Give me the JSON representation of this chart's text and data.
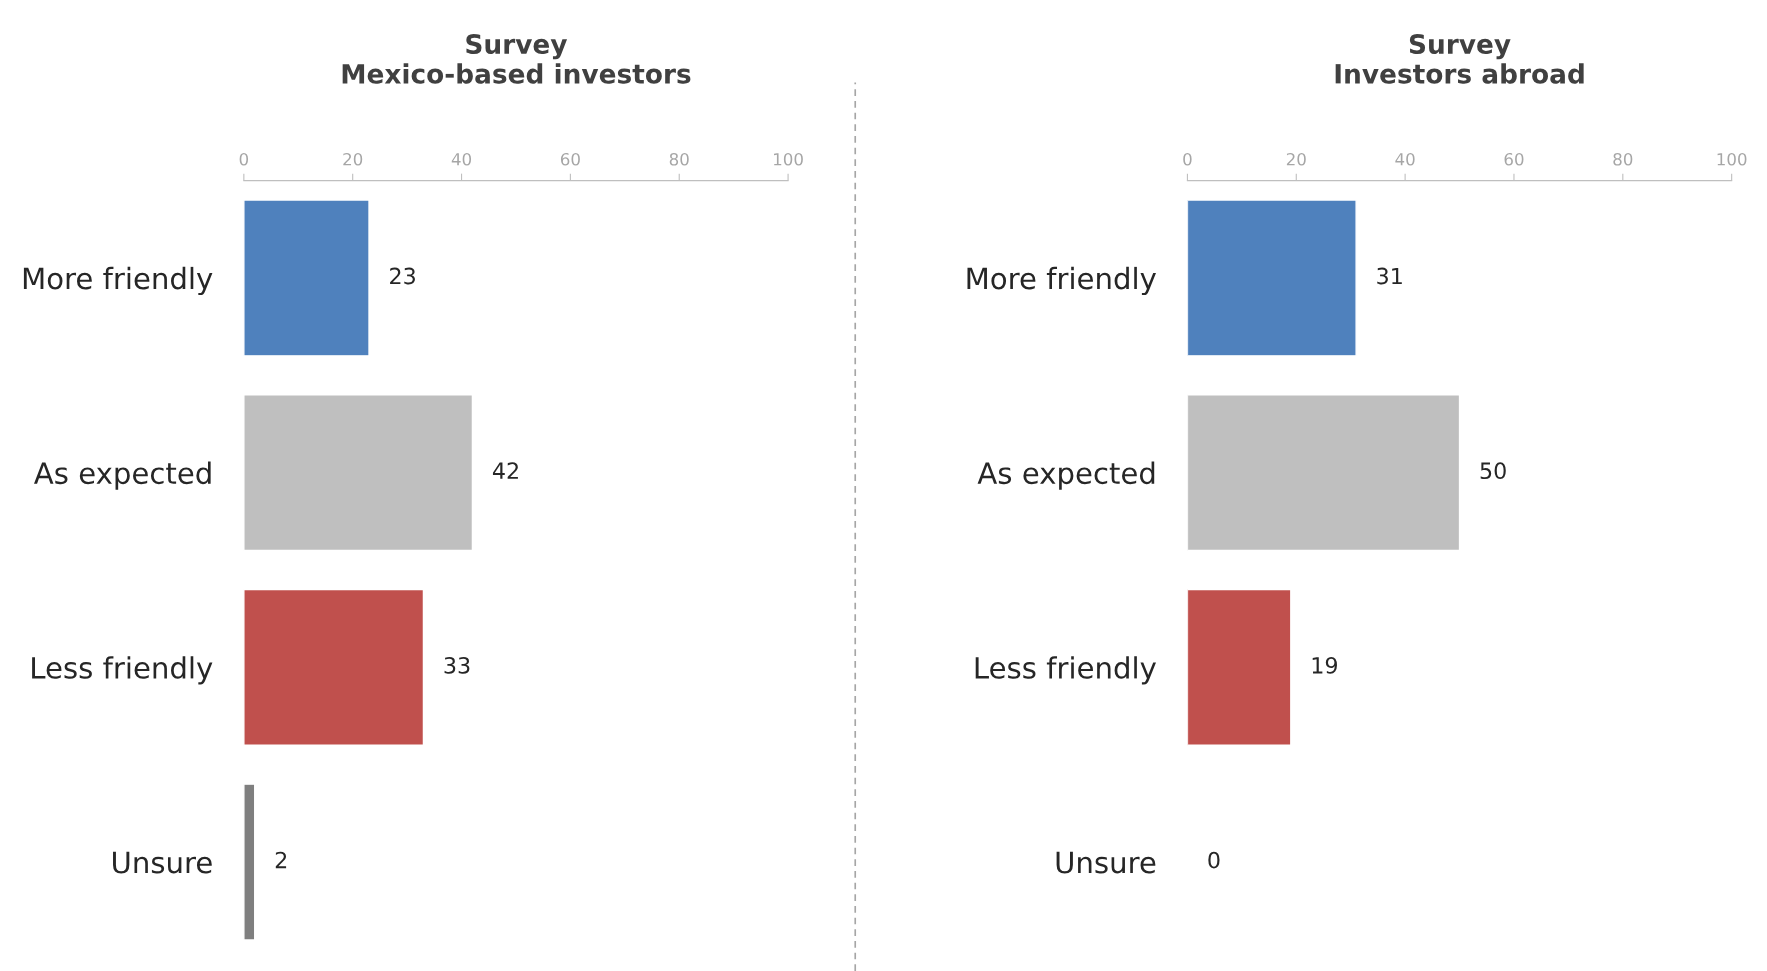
{
  "chart_data": [
    {
      "type": "bar",
      "orientation": "horizontal",
      "title": "Survey\nMexico-based investors",
      "categories": [
        "More friendly",
        "As expected",
        "Less friendly",
        "Unsure"
      ],
      "values": [
        23,
        42,
        33,
        2
      ],
      "colors": [
        "#4f81bd",
        "#bfbfbf",
        "#c0504d",
        "#7f7f7f"
      ],
      "xlim": [
        0,
        100
      ],
      "xticks": [
        0,
        20,
        40,
        60,
        80,
        100
      ],
      "data_labels": true
    },
    {
      "type": "bar",
      "orientation": "horizontal",
      "title": "Survey\nInvestors abroad",
      "categories": [
        "More friendly",
        "As expected",
        "Less friendly",
        "Unsure"
      ],
      "values": [
        31,
        50,
        19,
        0
      ],
      "colors": [
        "#4f81bd",
        "#bfbfbf",
        "#c0504d",
        null
      ],
      "xlim": [
        0,
        100
      ],
      "xticks": [
        0,
        20,
        40,
        60,
        80,
        100
      ],
      "data_labels": true
    }
  ]
}
